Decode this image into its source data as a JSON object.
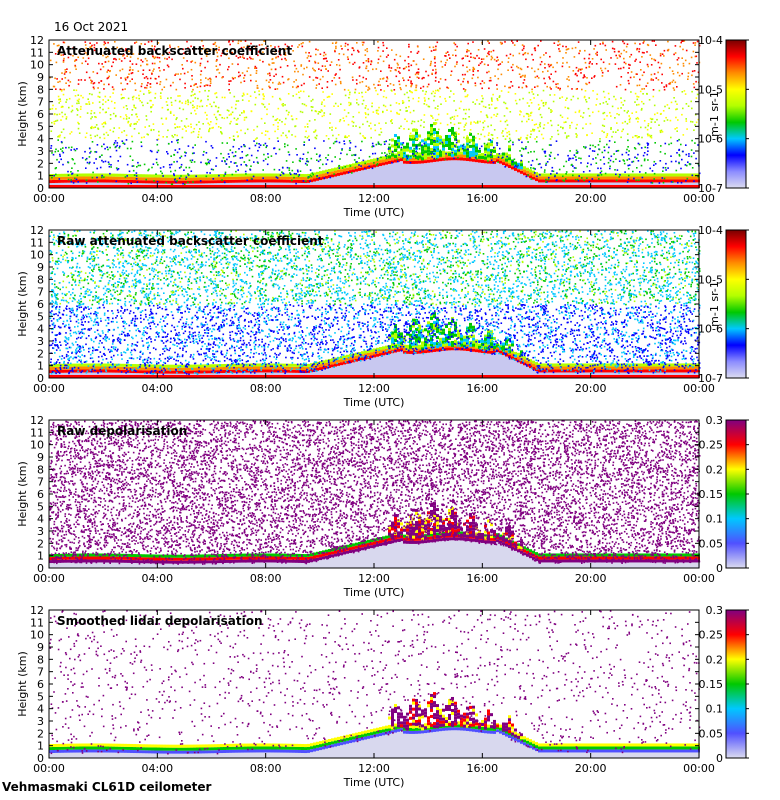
{
  "date": "16 Oct 2021",
  "site": "Vehmasmaki CL61D ceilometer",
  "colors": {
    "backscatter": [
      "#dcdcf0",
      "#8c8cff",
      "#0000ff",
      "#00c8ff",
      "#00c800",
      "#b4ff00",
      "#ffff00",
      "#ff8c00",
      "#ff0000",
      "#780000"
    ],
    "depolarisation": [
      "#dcdcf0",
      "#5050ff",
      "#00c8ff",
      "#00c800",
      "#ffff00",
      "#ff0000",
      "#800080"
    ]
  },
  "chart_data": [
    {
      "type": "heatmap",
      "title": "Attenuated backscatter coefficient",
      "xlabel": "Time (UTC)",
      "ylabel": "Height (km)",
      "xticks": [
        "00:00",
        "04:00",
        "08:00",
        "12:00",
        "16:00",
        "20:00",
        "00:00"
      ],
      "yticks": [
        "0",
        "1",
        "2",
        "3",
        "4",
        "5",
        "6",
        "7",
        "8",
        "9",
        "10",
        "11",
        "12"
      ],
      "ylim": [
        0,
        12
      ],
      "xlim_hours": [
        0,
        24
      ],
      "colorbar": {
        "scale": "log",
        "ticks": [
          "10-7",
          "10-6",
          "10-5",
          "10-4"
        ],
        "unit": "m-1 sr-1"
      },
      "features": {
        "boundary_layer_top_km": [
          0.4,
          0.4,
          0.7,
          2.2,
          2.0,
          0.5,
          0.4
        ],
        "cloud_top_km_13_16h": 5
      }
    },
    {
      "type": "heatmap",
      "title": "Raw attenuated backscatter coefficient",
      "xlabel": "Time (UTC)",
      "ylabel": "Height (km)",
      "xticks": [
        "00:00",
        "04:00",
        "08:00",
        "12:00",
        "16:00",
        "20:00",
        "00:00"
      ],
      "yticks": [
        "0",
        "1",
        "2",
        "3",
        "4",
        "5",
        "6",
        "7",
        "8",
        "9",
        "10",
        "11",
        "12"
      ],
      "ylim": [
        0,
        12
      ],
      "xlim_hours": [
        0,
        24
      ],
      "colorbar": {
        "scale": "log",
        "ticks": [
          "10-7",
          "10-6",
          "10-5",
          "10-4"
        ],
        "unit": "m-1 sr-1"
      }
    },
    {
      "type": "heatmap",
      "title": "Raw depolarisation",
      "xlabel": "Time (UTC)",
      "ylabel": "Height (km)",
      "xticks": [
        "00:00",
        "04:00",
        "08:00",
        "12:00",
        "16:00",
        "20:00",
        "00:00"
      ],
      "yticks": [
        "0",
        "1",
        "2",
        "3",
        "4",
        "5",
        "6",
        "7",
        "8",
        "9",
        "10",
        "11",
        "12"
      ],
      "ylim": [
        0,
        12
      ],
      "xlim_hours": [
        0,
        24
      ],
      "colorbar": {
        "scale": "linear",
        "ticks": [
          "0",
          "0.05",
          "0.1",
          "0.15",
          "0.2",
          "0.25",
          "0.3"
        ],
        "range": [
          0,
          0.3
        ]
      }
    },
    {
      "type": "heatmap",
      "title": "Smoothed lidar depolarisation",
      "xlabel": "Time (UTC)",
      "ylabel": "Height (km)",
      "xticks": [
        "00:00",
        "04:00",
        "08:00",
        "12:00",
        "16:00",
        "20:00",
        "00:00"
      ],
      "yticks": [
        "0",
        "1",
        "2",
        "3",
        "4",
        "5",
        "6",
        "7",
        "8",
        "9",
        "10",
        "11",
        "12"
      ],
      "ylim": [
        0,
        12
      ],
      "xlim_hours": [
        0,
        24
      ],
      "colorbar": {
        "scale": "linear",
        "ticks": [
          "0",
          "0.05",
          "0.1",
          "0.15",
          "0.2",
          "0.25",
          "0.3"
        ],
        "range": [
          0,
          0.3
        ]
      }
    }
  ]
}
